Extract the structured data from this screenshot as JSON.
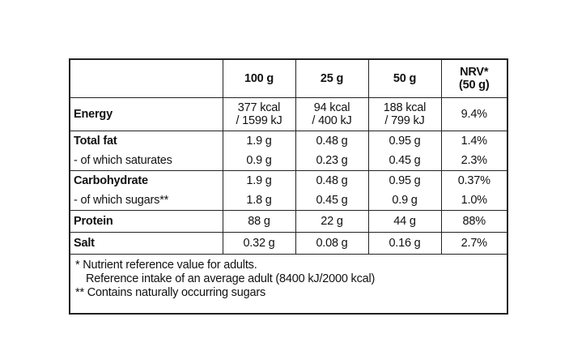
{
  "table": {
    "headers": [
      "",
      "100 g",
      "25 g",
      "50 g",
      "NRV*",
      "(50 g)"
    ],
    "rows": [
      {
        "label": "Energy",
        "bold": true,
        "values": [
          [
            "377 kcal",
            "/ 1599 kJ"
          ],
          [
            "94 kcal",
            "/ 400 kJ"
          ],
          [
            "188 kcal",
            "/ 799 kJ"
          ],
          [
            "9.4%"
          ]
        ]
      },
      {
        "label": "Total fat",
        "bold": true,
        "values": [
          [
            "1.9 g"
          ],
          [
            "0.48 g"
          ],
          [
            "0.95 g"
          ],
          [
            "1.4%"
          ]
        ]
      },
      {
        "label": "- of which saturates",
        "bold": false,
        "values": [
          [
            "0.9 g"
          ],
          [
            "0.23 g"
          ],
          [
            "0.45 g"
          ],
          [
            "2.3%"
          ]
        ]
      },
      {
        "label": "Carbohydrate",
        "bold": true,
        "values": [
          [
            "1.9 g"
          ],
          [
            "0.48 g"
          ],
          [
            "0.95 g"
          ],
          [
            "0.37%"
          ]
        ]
      },
      {
        "label": "- of which sugars**",
        "bold": false,
        "values": [
          [
            "1.8 g"
          ],
          [
            "0.45 g"
          ],
          [
            "0.9 g"
          ],
          [
            "1.0%"
          ]
        ]
      },
      {
        "label": "Protein",
        "bold": true,
        "values": [
          [
            "88 g"
          ],
          [
            "22 g"
          ],
          [
            "44 g"
          ],
          [
            "88%"
          ]
        ]
      },
      {
        "label": "Salt",
        "bold": true,
        "values": [
          [
            "0.32 g"
          ],
          [
            "0.08 g"
          ],
          [
            "0.16 g"
          ],
          [
            "2.7%"
          ]
        ]
      }
    ]
  },
  "footnotes": {
    "line1": "* Nutrient reference value for adults.",
    "line2": "Reference intake of an average adult (8400 kJ/2000 kcal)",
    "line3": "** Contains naturally occurring sugars"
  }
}
